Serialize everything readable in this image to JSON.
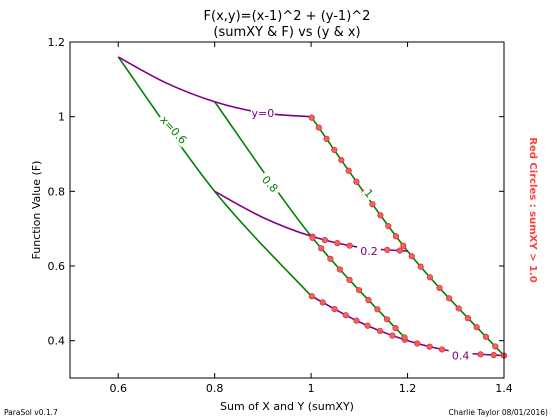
{
  "chart_data": {
    "type": "line",
    "title": "F(x,y)=(x-1)^2 + (y-1)^2",
    "subtitle": "(sumXY & F) vs (y & x)",
    "xlabel": "Sum of X and Y (sumXY)",
    "ylabel": "Function Value (F)",
    "right_label": "Red Circles : sumXY > 1.0",
    "xlim": [
      0.5,
      1.4
    ],
    "ylim": [
      0.3,
      1.2
    ],
    "xticks": [
      "0.6",
      "0.8",
      "1",
      "1.2",
      "1.4"
    ],
    "yticks": [
      "0.4",
      "0.6",
      "0.8",
      "1",
      "1.2"
    ],
    "grid": false,
    "footer_left": "ParaSol v0.1.7",
    "footer_right": "Charlie Taylor 08/01/2016)",
    "colors": {
      "x_lines": "#008000",
      "y_lines": "#800080",
      "marker_fill": "#ff5a5a",
      "marker_edge": "#b03030",
      "right_label": "#ff4040"
    },
    "series": [
      {
        "name": "y=0",
        "family": "y",
        "label_at": [
          0.9,
          1.01
        ],
        "label_angle": 0,
        "points": [
          [
            0.6,
            1.16
          ],
          [
            0.7,
            1.09
          ],
          [
            0.8,
            1.04
          ],
          [
            0.9,
            1.01
          ],
          [
            1.0,
            1.0
          ]
        ]
      },
      {
        "name": "0.2",
        "family": "y",
        "label_at": [
          1.12,
          0.64
        ],
        "label_angle": 0,
        "points": [
          [
            0.8,
            0.8
          ],
          [
            0.9,
            0.73
          ],
          [
            1.0,
            0.68
          ],
          [
            1.1,
            0.65
          ],
          [
            1.2,
            0.64
          ]
        ]
      },
      {
        "name": "0.4",
        "family": "y",
        "label_at": [
          1.31,
          0.36
        ],
        "label_angle": 0,
        "points": [
          [
            1.0,
            0.52
          ],
          [
            1.1,
            0.45
          ],
          [
            1.2,
            0.4
          ],
          [
            1.3,
            0.37
          ],
          [
            1.4,
            0.36
          ]
        ]
      },
      {
        "name": "x=0.6",
        "family": "x",
        "label_at": [
          0.715,
          0.965
        ],
        "label_angle": 48,
        "points": [
          [
            0.6,
            1.16
          ],
          [
            0.8,
            0.8
          ],
          [
            1.0,
            0.52
          ]
        ]
      },
      {
        "name": "0.8",
        "family": "x",
        "label_at": [
          0.915,
          0.82
        ],
        "label_angle": 48,
        "points": [
          [
            0.8,
            1.04
          ],
          [
            1.0,
            0.68
          ],
          [
            1.2,
            0.4
          ]
        ]
      },
      {
        "name": "1",
        "family": "x",
        "label_at": [
          1.12,
          0.795
        ],
        "label_angle": 48,
        "points": [
          [
            1.0,
            1.0
          ],
          [
            1.2,
            0.64
          ],
          [
            1.4,
            0.36
          ]
        ]
      }
    ]
  }
}
